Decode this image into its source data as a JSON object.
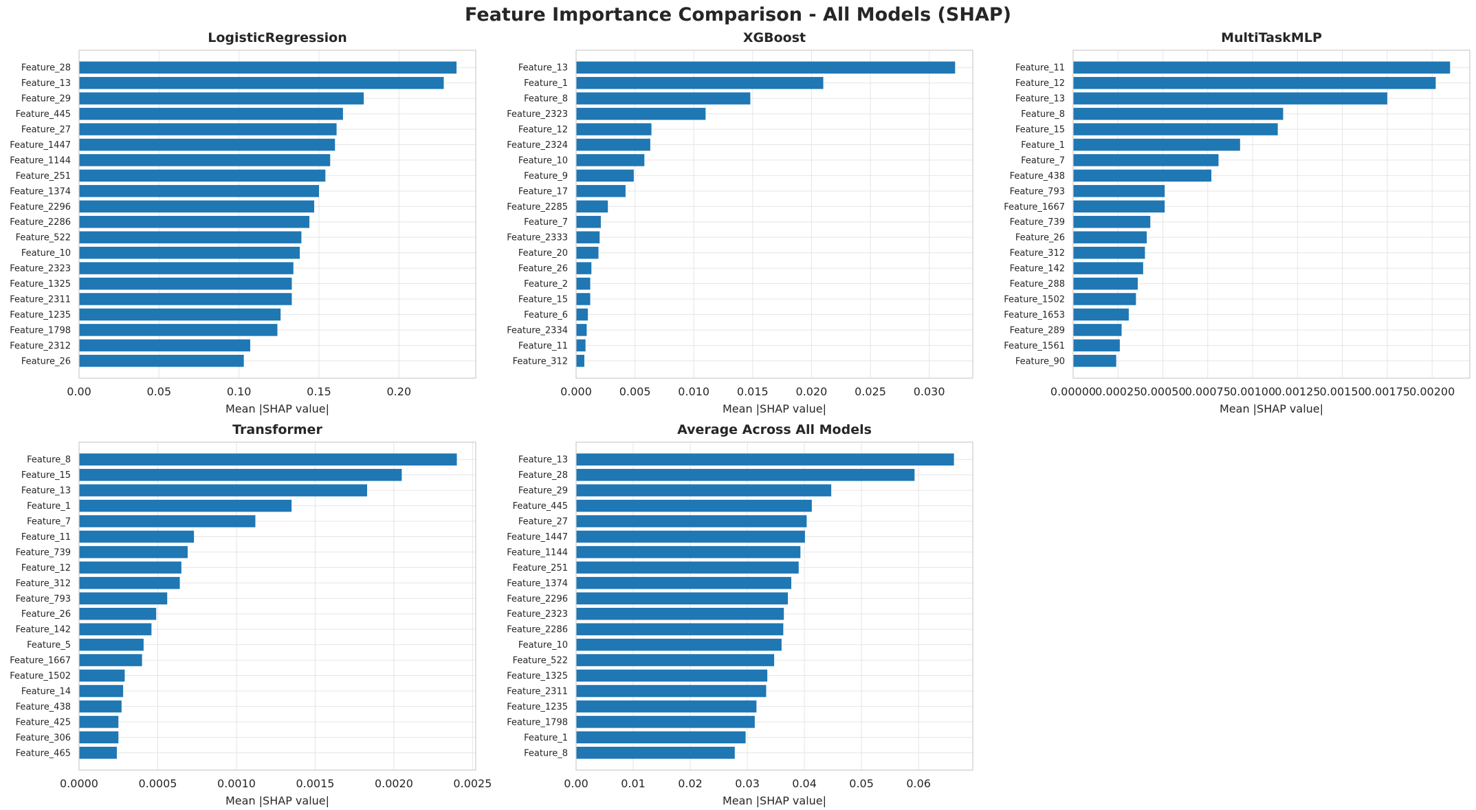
{
  "figure": {
    "title": "Feature Importance Comparison - All Models (SHAP)"
  },
  "colors": {
    "bar": "#1f77b4",
    "grid": "#e5e5e5",
    "axes_edge": "#cccccc",
    "text": "#262626"
  },
  "chart_data": [
    {
      "type": "bar",
      "orientation": "horizontal",
      "title": "LogisticRegression",
      "xlabel": "Mean |SHAP value|",
      "ylabel": "",
      "xlim": [
        0,
        0.248
      ],
      "xticks": [
        "0.00",
        "0.05",
        "0.10",
        "0.15",
        "0.20"
      ],
      "xtick_values": [
        0,
        0.05,
        0.1,
        0.15,
        0.2
      ],
      "grid": true,
      "categories": [
        "Feature_28",
        "Feature_13",
        "Feature_29",
        "Feature_445",
        "Feature_27",
        "Feature_1447",
        "Feature_1144",
        "Feature_251",
        "Feature_1374",
        "Feature_2296",
        "Feature_2286",
        "Feature_522",
        "Feature_10",
        "Feature_2323",
        "Feature_1325",
        "Feature_2311",
        "Feature_1235",
        "Feature_1798",
        "Feature_2312",
        "Feature_26"
      ],
      "values": [
        0.236,
        0.228,
        0.178,
        0.165,
        0.161,
        0.16,
        0.157,
        0.154,
        0.15,
        0.147,
        0.144,
        0.139,
        0.138,
        0.134,
        0.133,
        0.133,
        0.126,
        0.124,
        0.107,
        0.103
      ]
    },
    {
      "type": "bar",
      "orientation": "horizontal",
      "title": "XGBoost",
      "xlabel": "Mean |SHAP value|",
      "ylabel": "",
      "xlim": [
        0,
        0.0337
      ],
      "xticks": [
        "0.000",
        "0.005",
        "0.010",
        "0.015",
        "0.020",
        "0.025",
        "0.030"
      ],
      "xtick_values": [
        0,
        0.005,
        0.01,
        0.015,
        0.02,
        0.025,
        0.03
      ],
      "grid": true,
      "categories": [
        "Feature_13",
        "Feature_1",
        "Feature_8",
        "Feature_2323",
        "Feature_12",
        "Feature_2324",
        "Feature_10",
        "Feature_9",
        "Feature_17",
        "Feature_2285",
        "Feature_7",
        "Feature_2333",
        "Feature_20",
        "Feature_26",
        "Feature_2",
        "Feature_15",
        "Feature_6",
        "Feature_2334",
        "Feature_11",
        "Feature_312"
      ],
      "values": [
        0.0322,
        0.021,
        0.0148,
        0.011,
        0.0064,
        0.0063,
        0.0058,
        0.0049,
        0.0042,
        0.0027,
        0.0021,
        0.002,
        0.0019,
        0.0013,
        0.0012,
        0.0012,
        0.001,
        0.0009,
        0.0008,
        0.0007
      ]
    },
    {
      "type": "bar",
      "orientation": "horizontal",
      "title": "MultiTaskMLP",
      "xlabel": "Mean |SHAP value|",
      "ylabel": "",
      "xlim": [
        0,
        0.00221
      ],
      "xticks": [
        "0.00000",
        "0.00025",
        "0.00050",
        "0.00075",
        "0.00100",
        "0.00125",
        "0.00150",
        "0.00175",
        "0.00200"
      ],
      "xtick_values": [
        0,
        0.00025,
        0.0005,
        0.00075,
        0.001,
        0.00125,
        0.0015,
        0.00175,
        0.002
      ],
      "grid": true,
      "categories": [
        "Feature_11",
        "Feature_12",
        "Feature_13",
        "Feature_8",
        "Feature_15",
        "Feature_1",
        "Feature_7",
        "Feature_438",
        "Feature_793",
        "Feature_1667",
        "Feature_739",
        "Feature_26",
        "Feature_312",
        "Feature_142",
        "Feature_288",
        "Feature_1502",
        "Feature_1653",
        "Feature_289",
        "Feature_1561",
        "Feature_90"
      ],
      "values": [
        0.0021,
        0.00202,
        0.00175,
        0.00117,
        0.00114,
        0.00093,
        0.00081,
        0.00077,
        0.00051,
        0.00051,
        0.00043,
        0.00041,
        0.0004,
        0.00039,
        0.00036,
        0.00035,
        0.00031,
        0.00027,
        0.00026,
        0.00024
      ]
    },
    {
      "type": "bar",
      "orientation": "horizontal",
      "title": "Transformer",
      "xlabel": "Mean |SHAP value|",
      "ylabel": "",
      "xlim": [
        0,
        0.00252
      ],
      "xticks": [
        "0.0000",
        "0.0005",
        "0.0010",
        "0.0015",
        "0.0020",
        "0.0025"
      ],
      "xtick_values": [
        0,
        0.0005,
        0.001,
        0.0015,
        0.002,
        0.0025
      ],
      "grid": true,
      "categories": [
        "Feature_8",
        "Feature_15",
        "Feature_13",
        "Feature_1",
        "Feature_7",
        "Feature_11",
        "Feature_739",
        "Feature_12",
        "Feature_312",
        "Feature_793",
        "Feature_26",
        "Feature_142",
        "Feature_5",
        "Feature_1667",
        "Feature_1502",
        "Feature_14",
        "Feature_438",
        "Feature_425",
        "Feature_306",
        "Feature_465"
      ],
      "values": [
        0.0024,
        0.00205,
        0.00183,
        0.00135,
        0.00112,
        0.00073,
        0.00069,
        0.00065,
        0.00064,
        0.00056,
        0.00049,
        0.00046,
        0.00041,
        0.0004,
        0.00029,
        0.00028,
        0.00027,
        0.00025,
        0.00025,
        0.00024
      ]
    },
    {
      "type": "bar",
      "orientation": "horizontal",
      "title": "Average Across All Models",
      "xlabel": "Mean |SHAP value|",
      "ylabel": "",
      "xlim": [
        0,
        0.0695
      ],
      "xticks": [
        "0.00",
        "0.01",
        "0.02",
        "0.03",
        "0.04",
        "0.05",
        "0.06"
      ],
      "xtick_values": [
        0,
        0.01,
        0.02,
        0.03,
        0.04,
        0.05,
        0.06
      ],
      "grid": true,
      "categories": [
        "Feature_13",
        "Feature_28",
        "Feature_29",
        "Feature_445",
        "Feature_27",
        "Feature_1447",
        "Feature_1144",
        "Feature_251",
        "Feature_1374",
        "Feature_2296",
        "Feature_2323",
        "Feature_2286",
        "Feature_10",
        "Feature_522",
        "Feature_1325",
        "Feature_2311",
        "Feature_1235",
        "Feature_1798",
        "Feature_1",
        "Feature_8"
      ],
      "values": [
        0.0662,
        0.0593,
        0.0447,
        0.0413,
        0.0404,
        0.0401,
        0.0393,
        0.039,
        0.0377,
        0.0371,
        0.0364,
        0.0363,
        0.036,
        0.0347,
        0.0335,
        0.0333,
        0.0316,
        0.0313,
        0.0297,
        0.0278
      ]
    }
  ]
}
